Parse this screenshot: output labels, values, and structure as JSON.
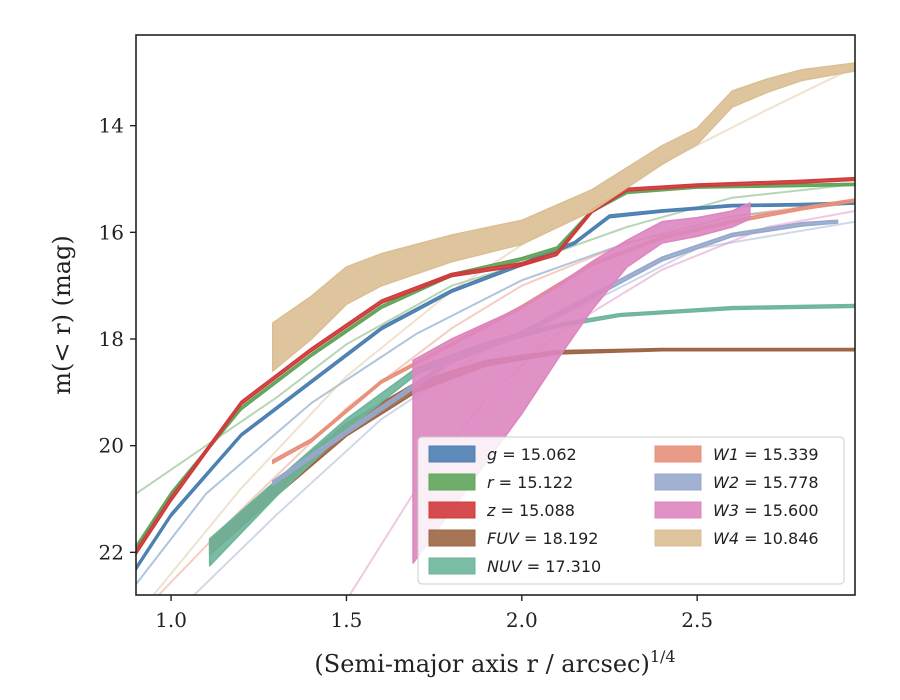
{
  "chart_data": {
    "type": "area",
    "xlabel": "(Semi-major axis r / arcsec)",
    "xlabel_sup": "1/4",
    "ylabel_pre": "m(< r) (mag)",
    "xlim": [
      0.9,
      2.95
    ],
    "ylim": [
      22.8,
      12.3
    ],
    "y_inverted": true,
    "grid": false,
    "legend_position": "lower-right",
    "legend_columns": 2,
    "x_ticks": [
      1.0,
      1.5,
      2.0,
      2.5
    ],
    "x_tick_labels": [
      "1.0",
      "1.5",
      "2.0",
      "2.5"
    ],
    "y_ticks": [
      14,
      16,
      18,
      20,
      22
    ],
    "y_tick_labels": [
      "14",
      "16",
      "18",
      "20",
      "22"
    ],
    "series": [
      {
        "name": "g = 15.062",
        "label_var": "g",
        "label_val": "15.062",
        "color": "#4c7fb1",
        "x": [
          0.9,
          1.0,
          1.2,
          1.4,
          1.6,
          1.8,
          2.0,
          2.15,
          2.25,
          2.4,
          2.6,
          2.8,
          2.95
        ],
        "y": [
          22.3,
          21.3,
          19.8,
          18.8,
          17.8,
          17.1,
          16.6,
          16.2,
          15.7,
          15.6,
          15.5,
          15.48,
          15.45
        ],
        "w": [
          0.06,
          0.06,
          0.05,
          0.05,
          0.05,
          0.05,
          0.05,
          0.05,
          0.05,
          0.04,
          0.04,
          0.04,
          0.04
        ]
      },
      {
        "name": "r = 15.122",
        "label_var": "r",
        "label_val": "15.122",
        "color": "#5fa55a",
        "x": [
          0.9,
          1.0,
          1.2,
          1.4,
          1.6,
          1.8,
          2.0,
          2.1,
          2.2,
          2.3,
          2.5,
          2.8,
          2.95
        ],
        "y": [
          21.9,
          20.9,
          19.3,
          18.3,
          17.4,
          16.8,
          16.5,
          16.3,
          15.6,
          15.25,
          15.15,
          15.12,
          15.1
        ],
        "w": [
          0.05,
          0.05,
          0.05,
          0.05,
          0.05,
          0.05,
          0.05,
          0.05,
          0.05,
          0.04,
          0.04,
          0.04,
          0.04
        ]
      },
      {
        "name": "z = 15.088",
        "label_var": "z",
        "label_val": "15.088",
        "color": "#d03a3b",
        "x": [
          0.9,
          1.0,
          1.2,
          1.4,
          1.6,
          1.8,
          2.0,
          2.1,
          2.2,
          2.3,
          2.5,
          2.8,
          2.95
        ],
        "y": [
          22.0,
          21.0,
          19.2,
          18.2,
          17.3,
          16.8,
          16.6,
          16.4,
          15.6,
          15.2,
          15.12,
          15.05,
          15.0
        ],
        "w": [
          0.08,
          0.08,
          0.06,
          0.06,
          0.06,
          0.06,
          0.06,
          0.06,
          0.06,
          0.05,
          0.05,
          0.05,
          0.05
        ]
      },
      {
        "name": "FUV = 18.192",
        "label_var": "FUV",
        "label_val": "18.192",
        "color": "#9c6644",
        "x": [
          1.11,
          1.3,
          1.5,
          1.7,
          1.9,
          2.1,
          2.4,
          2.7,
          2.95
        ],
        "y": [
          21.9,
          20.8,
          19.7,
          18.9,
          18.45,
          18.25,
          18.2,
          18.2,
          18.2
        ],
        "w": [
          0.3,
          0.28,
          0.24,
          0.18,
          0.1,
          0.06,
          0.04,
          0.04,
          0.04
        ]
      },
      {
        "name": "NUV = 17.310",
        "label_var": "NUV",
        "label_val": "17.310",
        "color": "#6db59b",
        "x": [
          1.11,
          1.3,
          1.5,
          1.7,
          1.9,
          2.1,
          2.28,
          2.6,
          2.95
        ],
        "y": [
          22.0,
          20.8,
          19.6,
          18.6,
          18.1,
          17.75,
          17.55,
          17.42,
          17.38
        ],
        "w": [
          0.5,
          0.3,
          0.2,
          0.12,
          0.08,
          0.06,
          0.05,
          0.05,
          0.05
        ]
      },
      {
        "name": "W1 = 15.339",
        "label_var": "W1",
        "label_val": "15.339",
        "color": "#e8907a",
        "x": [
          1.29,
          1.4,
          1.6,
          1.8,
          2.0,
          2.2,
          2.4,
          2.6,
          2.8,
          2.95
        ],
        "y": [
          20.3,
          19.9,
          18.8,
          18.1,
          17.4,
          16.6,
          16.1,
          15.8,
          15.55,
          15.4
        ],
        "w": [
          0.06,
          0.05,
          0.05,
          0.05,
          0.05,
          0.05,
          0.05,
          0.05,
          0.05,
          0.05
        ]
      },
      {
        "name": "W2 = 15.778",
        "label_var": "W2",
        "label_val": "15.778",
        "color": "#97a8cc",
        "x": [
          1.29,
          1.4,
          1.6,
          1.8,
          2.0,
          2.2,
          2.4,
          2.6,
          2.8,
          2.9
        ],
        "y": [
          20.7,
          20.2,
          19.3,
          18.4,
          17.9,
          17.2,
          16.5,
          16.05,
          15.85,
          15.8
        ],
        "w": [
          0.08,
          0.08,
          0.08,
          0.08,
          0.08,
          0.08,
          0.07,
          0.06,
          0.06,
          0.05
        ]
      },
      {
        "name": "W3 = 15.600",
        "label_var": "W3",
        "label_val": "15.600",
        "color": "#dd86c0",
        "x": [
          1.69,
          1.8,
          1.9,
          2.0,
          2.1,
          2.2,
          2.3,
          2.4,
          2.5,
          2.6,
          2.65
        ],
        "y": [
          20.3,
          19.6,
          19.0,
          18.4,
          17.7,
          17.0,
          16.4,
          16.0,
          15.9,
          15.75,
          15.6
        ],
        "w": [
          3.8,
          3.2,
          2.6,
          2.0,
          1.4,
          0.9,
          0.5,
          0.4,
          0.35,
          0.3,
          0.3
        ]
      },
      {
        "name": "W4 = 10.846",
        "label_var": "W4",
        "label_val": "10.846",
        "color": "#dbbf94",
        "x": [
          1.29,
          1.4,
          1.5,
          1.6,
          1.8,
          2.0,
          2.2,
          2.4,
          2.5,
          2.6,
          2.7,
          2.8,
          2.95
        ],
        "y": [
          18.15,
          17.6,
          17.0,
          16.7,
          16.3,
          16.0,
          15.4,
          14.55,
          14.2,
          13.5,
          13.25,
          13.05,
          12.9
        ],
        "w": [
          0.9,
          0.8,
          0.7,
          0.6,
          0.5,
          0.45,
          0.4,
          0.35,
          0.3,
          0.3,
          0.25,
          0.2,
          0.15
        ]
      }
    ],
    "faint_lines": [
      {
        "color": "#4c7fb1",
        "x": [
          0.9,
          1.1,
          1.4,
          1.7,
          2.0,
          2.3,
          2.6,
          2.95
        ],
        "y": [
          22.6,
          20.9,
          19.2,
          17.9,
          16.9,
          16.2,
          15.7,
          15.45
        ]
      },
      {
        "color": "#5fa55a",
        "x": [
          0.9,
          1.1,
          1.3,
          1.5,
          1.8,
          2.0,
          2.3,
          2.6,
          2.95
        ],
        "y": [
          20.9,
          20.0,
          19.1,
          18.1,
          17.0,
          16.6,
          15.9,
          15.35,
          15.1
        ]
      },
      {
        "color": "#dbbf94",
        "x": [
          0.95,
          1.2,
          1.5,
          1.8,
          2.1,
          2.4,
          2.7,
          2.95
        ],
        "y": [
          22.8,
          20.8,
          18.7,
          17.1,
          15.8,
          14.7,
          13.7,
          12.9
        ]
      },
      {
        "color": "#e8907a",
        "x": [
          0.95,
          1.2,
          1.5,
          1.8,
          2.0,
          2.3,
          2.6,
          2.95
        ],
        "y": [
          22.9,
          21.2,
          19.3,
          17.8,
          17.0,
          16.2,
          15.7,
          15.4
        ]
      },
      {
        "color": "#97a8cc",
        "x": [
          1.05,
          1.3,
          1.6,
          1.9,
          2.2,
          2.5,
          2.95
        ],
        "y": [
          22.9,
          21.3,
          19.5,
          18.2,
          17.3,
          16.3,
          15.8
        ]
      },
      {
        "color": "#dd86c0",
        "x": [
          1.5,
          1.7,
          1.9,
          2.1,
          2.4,
          2.7,
          2.95
        ],
        "y": [
          22.9,
          20.8,
          19.1,
          17.9,
          16.7,
          15.9,
          15.6
        ]
      },
      {
        "color": "#6db59b",
        "x": [
          2.28,
          2.5,
          2.7,
          2.95
        ],
        "y": [
          17.55,
          17.45,
          17.4,
          17.38
        ]
      },
      {
        "color": "#9c6644",
        "x": [
          2.1,
          2.4,
          2.7,
          2.95
        ],
        "y": [
          18.25,
          18.2,
          18.2,
          18.2
        ]
      }
    ]
  }
}
